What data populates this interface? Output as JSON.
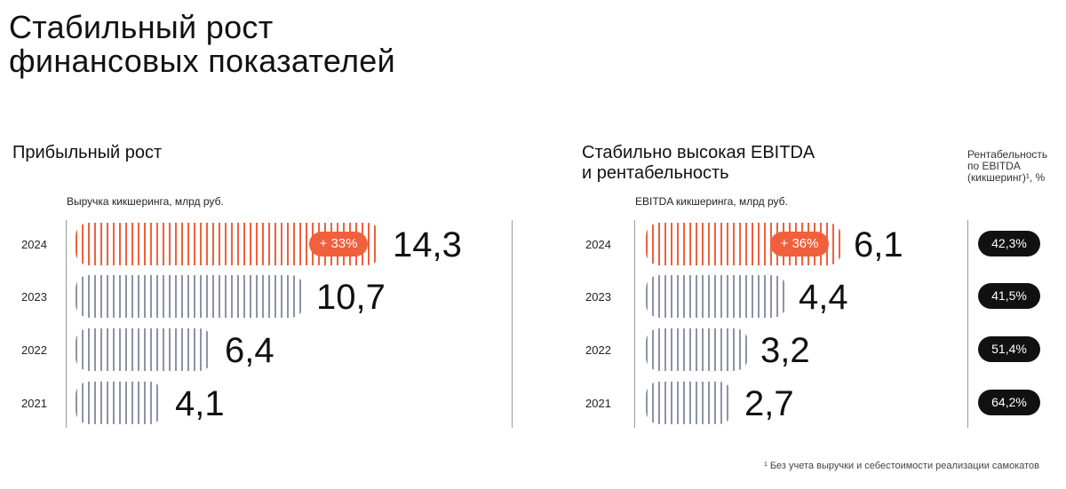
{
  "title_line1": "Стабильный рост",
  "title_line2": "финансовых показателей",
  "colors": {
    "accent": "#f0603c",
    "gray": "#8c93a4",
    "dark": "#111111"
  },
  "footnote": "¹ Без учета выручки и себестоимости реализации самокатов",
  "chart_data": [
    {
      "type": "bar",
      "orientation": "horizontal",
      "title": "Прибыльный рост",
      "xlabel": "Выручка кикшеринга, млрд руб.",
      "categories": [
        "2024",
        "2023",
        "2022",
        "2021"
      ],
      "values": [
        14.3,
        10.7,
        6.4,
        4.1
      ],
      "value_labels": [
        "14,3",
        "10,7",
        "6,4",
        "4,1"
      ],
      "growth_label": "+ 33%",
      "highlight_category": "2024"
    },
    {
      "type": "bar",
      "orientation": "horizontal",
      "title_line1": "Стабильно высокая EBITDA",
      "title_line2": "и рентабельность",
      "xlabel": "EBITDA кикшеринга, млрд руб.",
      "categories": [
        "2024",
        "2023",
        "2022",
        "2021"
      ],
      "values": [
        6.1,
        4.4,
        3.2,
        2.7
      ],
      "value_labels": [
        "6,1",
        "4,4",
        "3,2",
        "2,7"
      ],
      "growth_label": "+ 36%",
      "highlight_category": "2024",
      "margin_caption_line1": "Рентабельность",
      "margin_caption_line2": "по EBITDA",
      "margin_caption_line3": "(кикшеринг)¹, %",
      "margin_labels": [
        "42,3%",
        "41,5%",
        "51,4%",
        "64,2%"
      ]
    }
  ]
}
